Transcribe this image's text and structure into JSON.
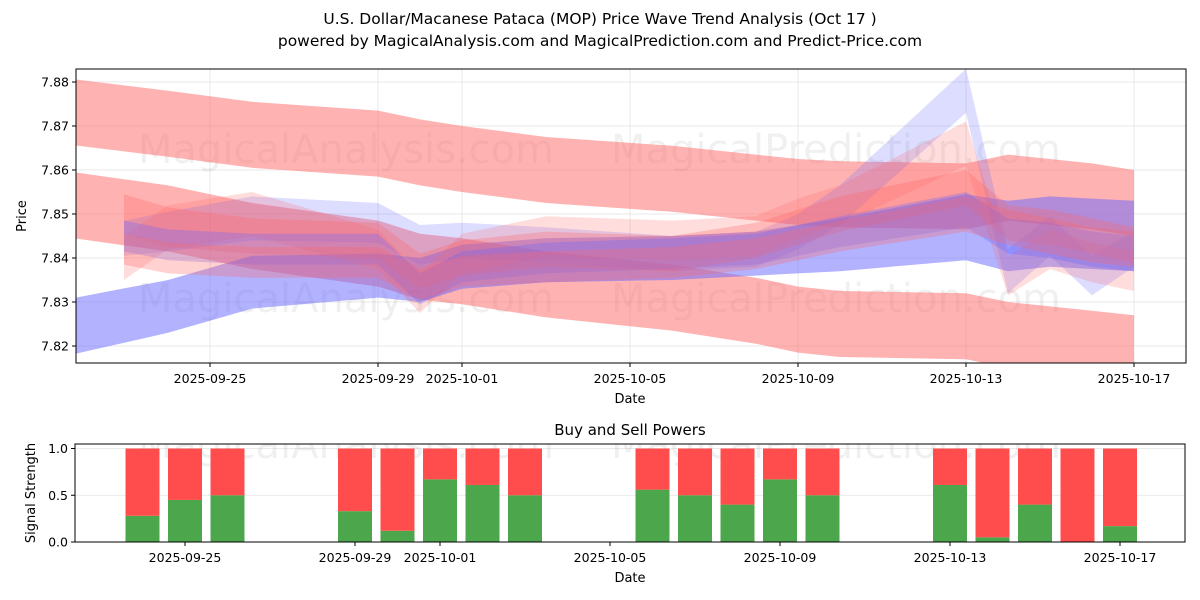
{
  "header": {
    "title": "U.S. Dollar/Macanese Pataca (MOP) Price Wave Trend Analysis (Oct 17 )",
    "subtitle": "powered by MagicalAnalysis.com and MagicalPrediction.com and Predict-Price.com"
  },
  "watermarks": [
    "MagicalAnalysis.com",
    "MagicalPrediction.com"
  ],
  "colors": {
    "buy": "#4ca64c",
    "sell": "#ff4c4c",
    "band_red": "#ff6666",
    "band_blue": "#6666ff"
  },
  "chart_data": [
    {
      "type": "area",
      "title": "",
      "xlabel": "Date",
      "ylabel": "Price",
      "ylim": [
        7.816,
        7.883
      ],
      "xlim": [
        "2025-09-22",
        "2025-10-18"
      ],
      "yticks": [
        "7.82",
        "7.83",
        "7.84",
        "7.85",
        "7.86",
        "7.87",
        "7.88"
      ],
      "xticks": [
        "2025-09-25",
        "2025-09-29",
        "2025-10-01",
        "2025-10-05",
        "2025-10-09",
        "2025-10-13",
        "2025-10-17"
      ],
      "grid": true,
      "x_dates": [
        "2025-09-22",
        "2025-09-24",
        "2025-09-26",
        "2025-09-29",
        "2025-09-30",
        "2025-10-01",
        "2025-10-03",
        "2025-10-06",
        "2025-10-08",
        "2025-10-09",
        "2025-10-10",
        "2025-10-13",
        "2025-10-14",
        "2025-10-15",
        "2025-10-16",
        "2025-10-17"
      ],
      "bands": [
        {
          "name": "upper-red-band",
          "color": "red",
          "opacity": 0.5,
          "start": "2025-09-22",
          "end": "2025-10-17",
          "center": [
            7.874,
            7.8705,
            7.868,
            7.866,
            7.864,
            7.8625,
            7.86,
            7.858,
            7.856,
            7.855,
            7.8545,
            7.854,
            7.856,
            7.855,
            7.854,
            7.8525
          ],
          "halfwidth": [
            0.0075,
            0.0075,
            0.0075,
            0.0075,
            0.0075,
            0.0075,
            0.0075,
            0.0075,
            0.0075,
            0.0075,
            0.0075,
            0.0075,
            0.0075,
            0.0075,
            0.0075,
            0.0075
          ]
        },
        {
          "name": "lower-red-band",
          "color": "red",
          "opacity": 0.5,
          "start": "2025-09-22",
          "end": "2025-10-17",
          "center": [
            7.853,
            7.849,
            7.845,
            7.841,
            7.838,
            7.837,
            7.834,
            7.831,
            7.828,
            7.826,
            7.825,
            7.8245,
            7.8225,
            7.8215,
            7.8205,
            7.8195
          ],
          "halfwidth": [
            0.0075,
            0.0075,
            0.0075,
            0.0075,
            0.0075,
            0.0075,
            0.0075,
            0.0075,
            0.0075,
            0.0075,
            0.0075,
            0.0075,
            0.0075,
            0.0075,
            0.0075,
            0.0075
          ]
        },
        {
          "name": "lower-blue-band",
          "color": "blue",
          "opacity": 0.5,
          "start": "2025-09-22",
          "end": "2025-10-17",
          "center": [
            7.823,
            7.829,
            7.8345,
            7.836,
            7.835,
            7.838,
            7.8395,
            7.84,
            7.841,
            7.842,
            7.843,
            7.847,
            7.845,
            7.846,
            7.8455,
            7.845
          ],
          "halfwidth": [
            0.0065,
            0.006,
            0.006,
            0.005,
            0.005,
            0.005,
            0.005,
            0.005,
            0.005,
            0.0055,
            0.006,
            0.0075,
            0.008,
            0.008,
            0.008,
            0.008
          ]
        },
        {
          "name": "light-blue-band",
          "color": "blue",
          "opacity": 0.22,
          "start": "2025-09-23",
          "end": "2025-10-17",
          "center": [
            7.8445,
            7.846,
            7.849,
            7.848,
            7.843,
            7.844,
            7.843,
            7.841,
            7.842,
            7.846,
            7.852,
            7.878,
            7.837,
            7.845,
            7.836,
            7.842
          ],
          "halfwidth": [
            0.004,
            0.0045,
            0.005,
            0.0045,
            0.0045,
            0.004,
            0.004,
            0.004,
            0.004,
            0.004,
            0.0045,
            0.005,
            0.005,
            0.0045,
            0.0045,
            0.004
          ]
        },
        {
          "name": "light-red-band",
          "color": "red",
          "opacity": 0.22,
          "start": "2025-09-23",
          "end": "2025-10-17",
          "center": [
            7.84,
            7.847,
            7.85,
            7.842,
            7.832,
            7.841,
            7.845,
            7.844,
            7.845,
            7.849,
            7.852,
            7.866,
            7.836,
            7.842,
            7.839,
            7.837
          ],
          "halfwidth": [
            0.005,
            0.005,
            0.005,
            0.0045,
            0.0045,
            0.0045,
            0.0045,
            0.0045,
            0.0045,
            0.0045,
            0.0045,
            0.005,
            0.0045,
            0.0045,
            0.0045,
            0.0045
          ]
        },
        {
          "name": "mid-red-band-1",
          "color": "red",
          "opacity": 0.3,
          "start": "2025-09-23",
          "end": "2025-10-17",
          "center": [
            7.85,
            7.847,
            7.845,
            7.844,
            7.837,
            7.84,
            7.842,
            7.841,
            7.844,
            7.847,
            7.85,
            7.856,
            7.848,
            7.847,
            7.845,
            7.843
          ],
          "halfwidth": [
            0.0045,
            0.0045,
            0.004,
            0.004,
            0.004,
            0.004,
            0.004,
            0.004,
            0.004,
            0.004,
            0.004,
            0.004,
            0.004,
            0.004,
            0.004,
            0.004
          ]
        },
        {
          "name": "mid-purple-band-1",
          "color": "blue",
          "opacity": 0.3,
          "start": "2025-09-23",
          "end": "2025-10-17",
          "center": [
            7.845,
            7.843,
            7.842,
            7.842,
            7.833,
            7.838,
            7.84,
            7.841,
            7.842,
            7.844,
            7.846,
            7.851,
            7.845,
            7.844,
            7.842,
            7.841
          ],
          "halfwidth": [
            0.0035,
            0.0035,
            0.0035,
            0.0035,
            0.0035,
            0.0035,
            0.0035,
            0.0035,
            0.0035,
            0.0035,
            0.0035,
            0.004,
            0.004,
            0.004,
            0.004,
            0.004
          ]
        },
        {
          "name": "mid-red-band-2",
          "color": "red",
          "opacity": 0.3,
          "start": "2025-09-23",
          "end": "2025-10-17",
          "center": [
            7.842,
            7.84,
            7.839,
            7.839,
            7.834,
            7.837,
            7.838,
            7.839,
            7.841,
            7.843,
            7.845,
            7.85,
            7.847,
            7.845,
            7.843,
            7.842
          ],
          "halfwidth": [
            0.0035,
            0.0035,
            0.0035,
            0.0035,
            0.0035,
            0.0035,
            0.0035,
            0.0035,
            0.0035,
            0.0035,
            0.0035,
            0.004,
            0.004,
            0.004,
            0.004,
            0.004
          ]
        }
      ]
    },
    {
      "type": "bar",
      "title": "Buy and Sell Powers",
      "xlabel": "Date",
      "ylabel": "Signal Strength",
      "ylim": [
        0,
        1.05
      ],
      "yticks": [
        "0.0",
        "0.5",
        "1.0"
      ],
      "xticks": [
        "2025-09-25",
        "2025-09-29",
        "2025-10-01",
        "2025-10-05",
        "2025-10-09",
        "2025-10-13",
        "2025-10-17"
      ],
      "grid": true,
      "categories": [
        "2025-09-24",
        "2025-09-25",
        "2025-09-26",
        "2025-09-29",
        "2025-09-30",
        "2025-10-01",
        "2025-10-02",
        "2025-10-03",
        "2025-10-06",
        "2025-10-07",
        "2025-10-08",
        "2025-10-09",
        "2025-10-10",
        "2025-10-13",
        "2025-10-14",
        "2025-10-15",
        "2025-10-16",
        "2025-10-17"
      ],
      "series": [
        {
          "name": "Buy",
          "values": [
            0.28,
            0.45,
            0.5,
            0.33,
            0.12,
            0.67,
            0.61,
            0.5,
            0.56,
            0.5,
            0.4,
            0.67,
            0.5,
            0.61,
            0.05,
            0.4,
            0.0,
            0.17
          ]
        },
        {
          "name": "Sell",
          "values": [
            0.72,
            0.55,
            0.5,
            0.67,
            0.88,
            0.33,
            0.39,
            0.5,
            0.44,
            0.5,
            0.6,
            0.33,
            0.5,
            0.39,
            0.95,
            0.6,
            1.0,
            0.83
          ]
        }
      ]
    }
  ]
}
